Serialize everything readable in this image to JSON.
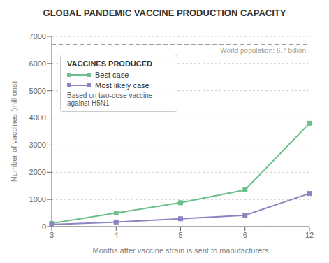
{
  "chart_data": {
    "type": "line",
    "title": "GLOBAL PANDEMIC VACCINE PRODUCTION CAPACITY",
    "xlabel": "Months after vaccine strain is sent to manufacturers",
    "ylabel": "Number of vaccines (millions)",
    "categories": [
      "3",
      "4",
      "5",
      "6",
      "12"
    ],
    "series": [
      {
        "name": "Best case",
        "color": "#6abf8a",
        "marker": "square",
        "values": [
          120,
          500,
          880,
          1350,
          3800
        ]
      },
      {
        "name": "Most likely case",
        "color": "#8b84c0",
        "marker": "square",
        "values": [
          80,
          170,
          290,
          420,
          1220
        ]
      }
    ],
    "ylim": [
      0,
      7000
    ],
    "yticks": [
      0,
      1000,
      2000,
      3000,
      4000,
      5000,
      6000,
      7000
    ],
    "grid": true,
    "legend": "upper left",
    "legend_title": "VACCINES PRODUCED",
    "annotations": [
      {
        "text": "World population: 6.7 billion",
        "y": 6700,
        "color": "#a0a090",
        "line_style": "dashed"
      },
      {
        "text": "Based on two-dose vaccine\nagainst H5N1"
      }
    ]
  }
}
